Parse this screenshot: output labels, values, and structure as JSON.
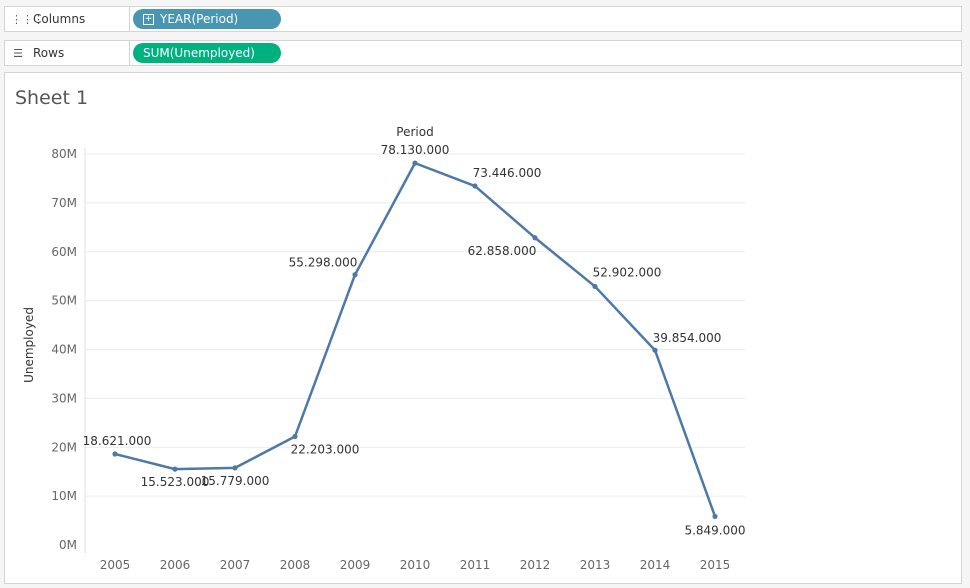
{
  "shelves": {
    "columns": {
      "label": "Columns",
      "pill": "YEAR(Period)"
    },
    "rows": {
      "label": "Rows",
      "pill": "SUM(Unemployed)"
    }
  },
  "sheet": {
    "title": "Sheet 1"
  },
  "chart_data": {
    "type": "line",
    "title": "",
    "xlabel": "Period",
    "ylabel": "Unemployed",
    "categories": [
      "2005",
      "2006",
      "2007",
      "2008",
      "2009",
      "2010",
      "2011",
      "2012",
      "2013",
      "2014",
      "2015"
    ],
    "series": [
      {
        "values": [
          18.621,
          15.523,
          15.779,
          22.203,
          55.298,
          78.13,
          73.446,
          62.858,
          52.902,
          39.854,
          5.849
        ],
        "labels": [
          "18.621.000",
          "15.523.000",
          "15.779.000",
          "22.203.000",
          "55.298.000",
          "78.130.000",
          "73.446.000",
          "62.858.000",
          "52.902.000",
          "39.854.000",
          "5.849.000"
        ],
        "color": "#4e79a7"
      }
    ],
    "ylim": [
      0,
      80
    ],
    "yticks": [
      0,
      10,
      20,
      30,
      40,
      50,
      60,
      70,
      80
    ],
    "ytick_labels": [
      "0M",
      "10M",
      "20M",
      "30M",
      "40M",
      "50M",
      "60M",
      "70M",
      "80M"
    ],
    "grid": true,
    "legend": "none"
  }
}
